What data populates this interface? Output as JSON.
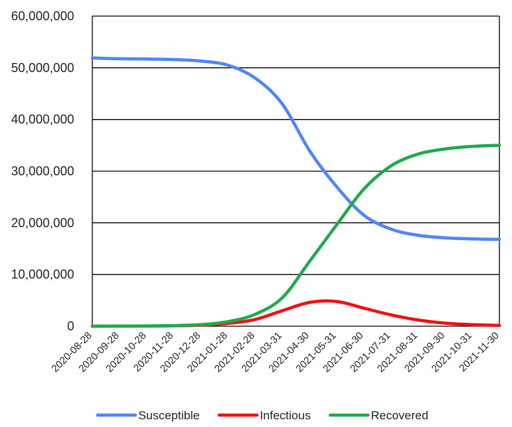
{
  "chart_data": {
    "type": "line",
    "title": "",
    "xlabel": "",
    "ylabel": "",
    "ylim": [
      0,
      60000000
    ],
    "y_ticks": [
      {
        "value": 0,
        "label": "0"
      },
      {
        "value": 10000000,
        "label": "10,000,000"
      },
      {
        "value": 20000000,
        "label": "20,000,000"
      },
      {
        "value": 30000000,
        "label": "30,000,000"
      },
      {
        "value": 40000000,
        "label": "40,000,000"
      },
      {
        "value": 50000000,
        "label": "50,000,000"
      },
      {
        "value": 60000000,
        "label": "60,000,000"
      }
    ],
    "x": [
      "2020-08-28",
      "2020-09-28",
      "2020-10-28",
      "2020-11-28",
      "2020-12-28",
      "2021-01-28",
      "2021-02-28",
      "2021-03-31",
      "2021-04-30",
      "2021-05-31",
      "2021-06-30",
      "2021-07-31",
      "2021-08-31",
      "2021-09-30",
      "2021-10-31",
      "2021-11-30"
    ],
    "grid": "horizontal",
    "legend_position": "bottom",
    "series": [
      {
        "name": "Susceptible",
        "color": "#4f86f7",
        "values": [
          51900000,
          51750000,
          51700000,
          51600000,
          51300000,
          50500000,
          48000000,
          43000000,
          34000000,
          27000000,
          21500000,
          18800000,
          17600000,
          17100000,
          16900000,
          16800000
        ]
      },
      {
        "name": "Infectious",
        "color": "#ee1111",
        "values": [
          0,
          10000,
          30000,
          80000,
          200000,
          550000,
          1300000,
          3000000,
          4600000,
          4800000,
          3500000,
          2200000,
          1200000,
          600000,
          300000,
          150000
        ]
      },
      {
        "name": "Recovered",
        "color": "#1faa4a",
        "values": [
          0,
          20000,
          50000,
          120000,
          300000,
          900000,
          2300000,
          5500000,
          12500000,
          19600000,
          26500000,
          31000000,
          33300000,
          34300000,
          34800000,
          35000000
        ]
      }
    ]
  }
}
